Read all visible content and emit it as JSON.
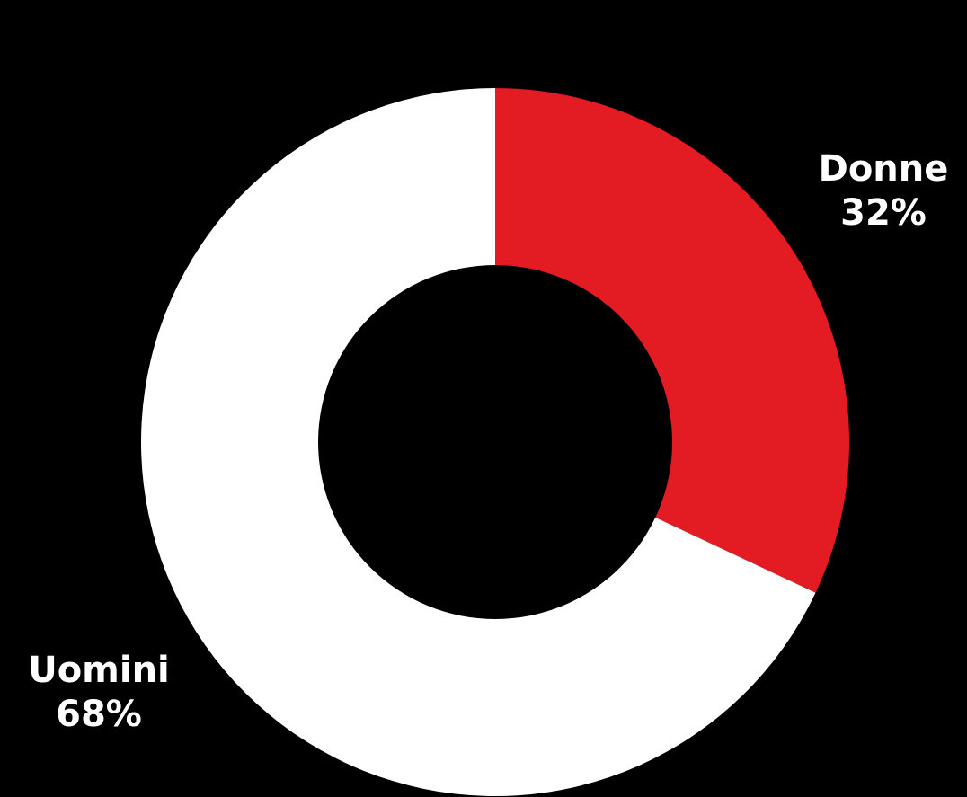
{
  "chart_data": {
    "type": "pie",
    "variant": "donut",
    "title": "",
    "slices": [
      {
        "label": "Donne",
        "value": 32,
        "display": "32%",
        "color": "#e31b23"
      },
      {
        "label": "Uomini",
        "value": 68,
        "display": "68%",
        "color": "#ffffff"
      }
    ],
    "start_angle_deg": 0,
    "direction": "clockwise",
    "hole_ratio": 0.5,
    "legend": "none",
    "background": "#000000"
  }
}
